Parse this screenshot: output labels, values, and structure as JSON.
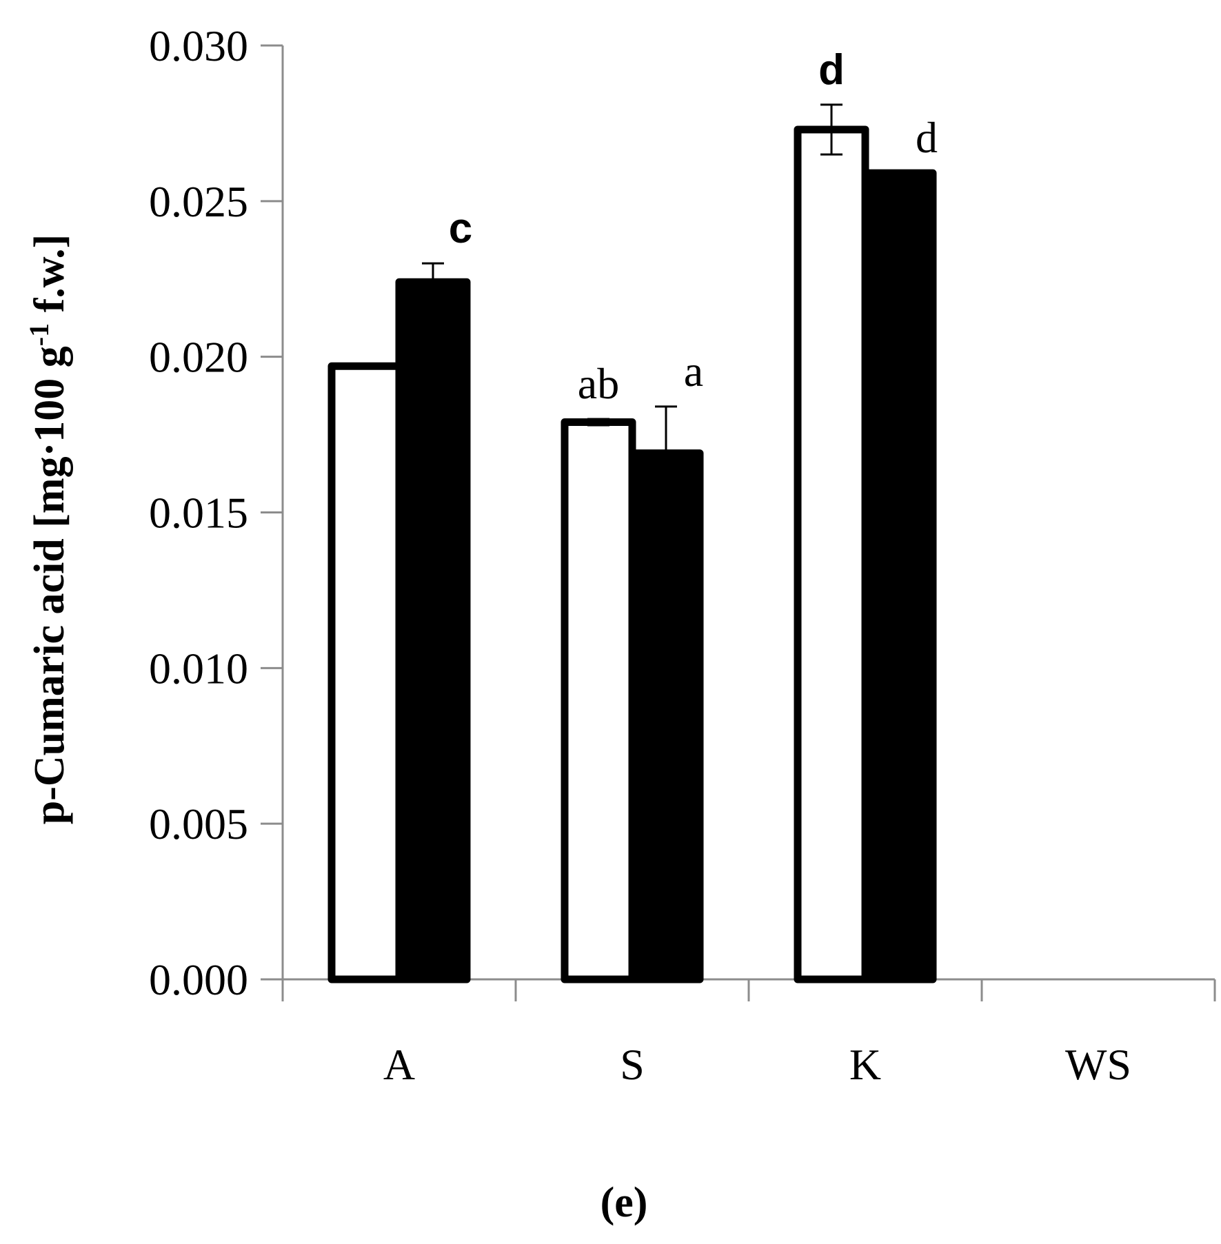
{
  "chart_data": {
    "type": "bar",
    "categories": [
      "A",
      "S",
      "K",
      "WS"
    ],
    "series": [
      {
        "values": [
          0.0197,
          0.0179,
          0.0273,
          null
        ],
        "errors": [
          0.0,
          0.0001,
          0.0008,
          null
        ],
        "fill": "#ffffff",
        "stroke": "#000000"
      },
      {
        "values": [
          0.0224,
          0.0169,
          0.0259,
          null
        ],
        "errors": [
          0.0006,
          0.0015,
          0.0,
          null
        ],
        "fill": "#000000",
        "stroke": "#000000"
      }
    ],
    "ylabel": "p-Cumaric acid [mg·100 g",
    "ylabel_superscript": "-1",
    "ylabel_suffix": " f.w.]",
    "ylim": [
      0,
      0.03
    ],
    "yticks": [
      "0.000",
      "0.005",
      "0.010",
      "0.015",
      "0.020",
      "0.025",
      "0.030"
    ],
    "annotations": [
      {
        "text": "c",
        "category": "A",
        "series": 1,
        "style": "bold"
      },
      {
        "text": "ab",
        "category": "S",
        "series": 0,
        "style": "serif"
      },
      {
        "text": "a",
        "category": "S",
        "series": 1,
        "style": "serif"
      },
      {
        "text": "d",
        "category": "K",
        "series": 0,
        "style": "bold"
      },
      {
        "text": "d",
        "category": "K",
        "series": 1,
        "style": "serif"
      }
    ],
    "panel_label": "(e)",
    "colors": {
      "axis": "#8c8c8c",
      "bar_stroke": "#000000"
    }
  }
}
